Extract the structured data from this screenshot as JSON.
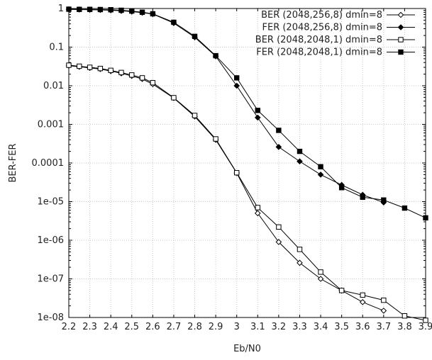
{
  "chart_data": {
    "type": "line",
    "xlabel": "Eb/N0",
    "ylabel": "BER-FER",
    "xlim": [
      2.2,
      3.9
    ],
    "ylim": [
      1e-08,
      1
    ],
    "yscale": "log",
    "grid": true,
    "legend_position": "top-right",
    "x_ticks": [
      2.2,
      2.3,
      2.4,
      2.5,
      2.6,
      2.7,
      2.8,
      2.9,
      3,
      3.1,
      3.2,
      3.3,
      3.4,
      3.5,
      3.6,
      3.7,
      3.8,
      3.9
    ],
    "x_tick_labels": [
      "2.2",
      "2.3",
      "2.4",
      "2.5",
      "2.6",
      "2.7",
      "2.8",
      "2.9",
      "3",
      "3.1",
      "3.2",
      "3.3",
      "3.4",
      "3.5",
      "3.6",
      "3.7",
      "3.8",
      "3.9"
    ],
    "y_ticks": [
      1,
      0.1,
      0.01,
      0.001,
      0.0001,
      1e-05,
      1e-06,
      1e-07,
      1e-08
    ],
    "y_tick_labels": [
      "1",
      "0.1",
      "0.01",
      "0.001",
      "0.0001",
      "1e-05",
      "1e-06",
      "1e-07",
      "1e-08"
    ],
    "series": [
      {
        "name": "BER (2048,256,8) dmin=8",
        "marker": "open-diamond",
        "x": [
          2.2,
          2.25,
          2.3,
          2.35,
          2.4,
          2.45,
          2.5,
          2.55,
          2.6,
          2.7,
          2.8,
          2.9,
          3.0,
          3.1,
          3.2,
          3.3,
          3.4,
          3.5,
          3.6,
          3.7
        ],
        "y": [
          0.033,
          0.031,
          0.029,
          0.027,
          0.024,
          0.021,
          0.018,
          0.015,
          0.011,
          0.0048,
          0.0016,
          0.0004,
          5.5e-05,
          5e-06,
          9e-07,
          2.6e-07,
          1e-07,
          5e-08,
          2.5e-08,
          1.5e-08
        ]
      },
      {
        "name": "FER (2048,256,8) dmin=8",
        "marker": "filled-diamond",
        "x": [
          2.2,
          2.25,
          2.3,
          2.35,
          2.4,
          2.45,
          2.5,
          2.55,
          2.6,
          2.7,
          2.8,
          2.9,
          3.0,
          3.1,
          3.2,
          3.3,
          3.4,
          3.5,
          3.6,
          3.7
        ],
        "y": [
          0.95,
          0.94,
          0.93,
          0.92,
          0.9,
          0.87,
          0.83,
          0.78,
          0.72,
          0.42,
          0.18,
          0.058,
          0.01,
          0.0015,
          0.00026,
          0.00011,
          5e-05,
          2.7e-05,
          1.5e-05,
          9.5e-06
        ]
      },
      {
        "name": "BER (2048,2048,1) dmin=8",
        "marker": "open-square",
        "x": [
          2.2,
          2.25,
          2.3,
          2.35,
          2.4,
          2.45,
          2.5,
          2.55,
          2.6,
          2.7,
          2.8,
          2.9,
          3.0,
          3.1,
          3.2,
          3.3,
          3.4,
          3.5,
          3.6,
          3.7,
          3.8,
          3.9
        ],
        "y": [
          0.034,
          0.032,
          0.03,
          0.028,
          0.025,
          0.022,
          0.019,
          0.016,
          0.012,
          0.0049,
          0.0017,
          0.00042,
          5.6e-05,
          7e-06,
          2.2e-06,
          5.8e-07,
          1.5e-07,
          5e-08,
          3.8e-08,
          2.8e-08,
          1.1e-08,
          7.5e-09
        ]
      },
      {
        "name": "FER (2048,2048,1) dmin=8",
        "marker": "filled-square",
        "x": [
          2.2,
          2.25,
          2.3,
          2.35,
          2.4,
          2.45,
          2.5,
          2.55,
          2.6,
          2.7,
          2.8,
          2.9,
          3.0,
          3.1,
          3.2,
          3.3,
          3.4,
          3.5,
          3.6,
          3.7,
          3.8,
          3.9
        ],
        "y": [
          0.96,
          0.95,
          0.95,
          0.94,
          0.93,
          0.9,
          0.86,
          0.8,
          0.73,
          0.44,
          0.19,
          0.06,
          0.016,
          0.0023,
          0.0007,
          0.0002,
          8e-05,
          2.3e-05,
          1.3e-05,
          1.1e-05,
          6.8e-06,
          3.8e-06
        ]
      }
    ]
  }
}
